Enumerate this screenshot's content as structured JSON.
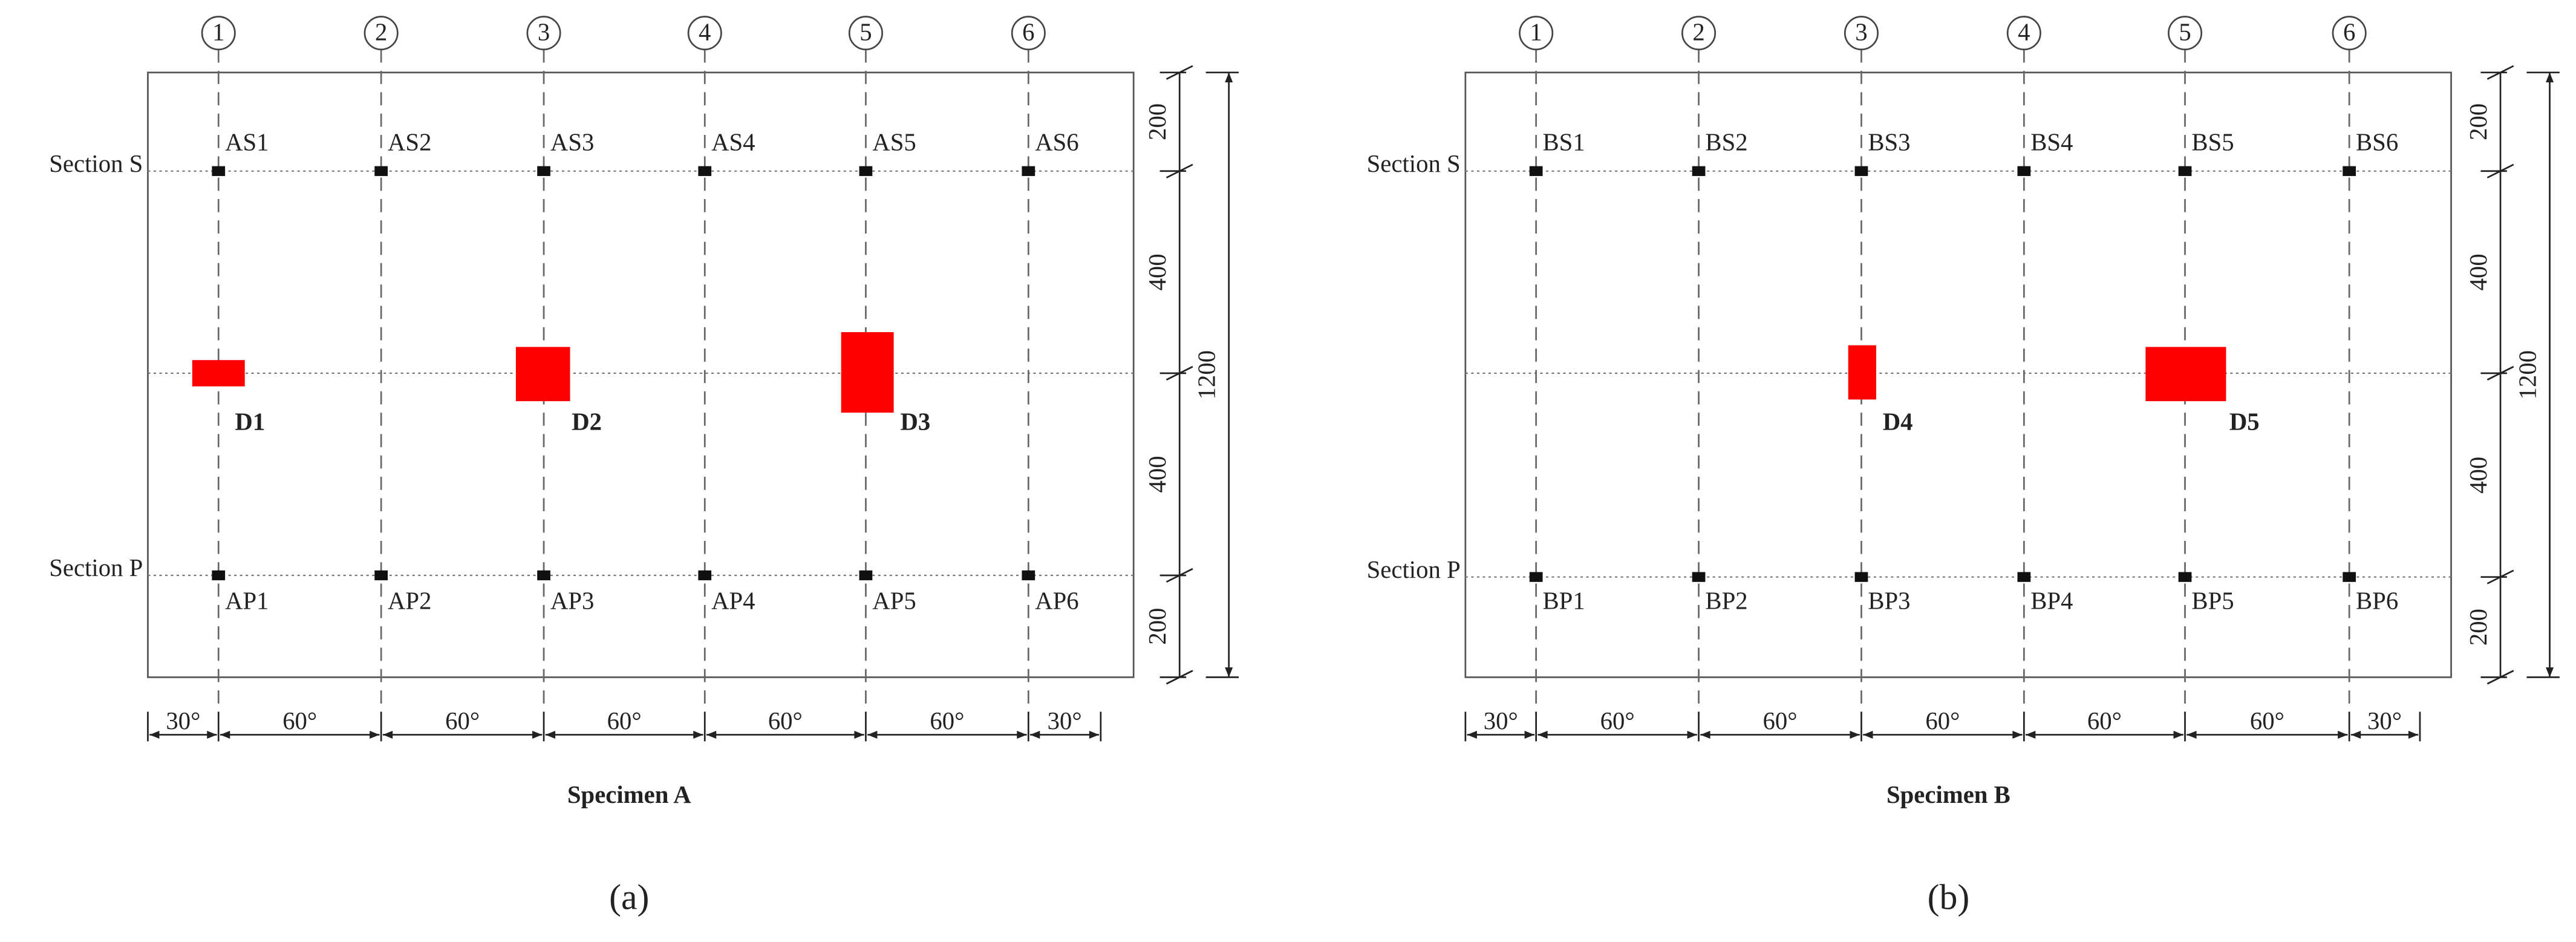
{
  "panels": [
    {
      "axes": [
        "1",
        "2",
        "3",
        "4",
        "5",
        "6"
      ],
      "section_s": "Section S",
      "section_p": "Section P",
      "sensors_top": [
        "AS1",
        "AS2",
        "AS3",
        "AS4",
        "AS5",
        "AS6"
      ],
      "sensors_bottom": [
        "AP1",
        "AP2",
        "AP3",
        "AP4",
        "AP5",
        "AP6"
      ],
      "defects": [
        "D1",
        "D2",
        "D3"
      ],
      "dims_right": [
        "200",
        "400",
        "400",
        "200"
      ],
      "dim_total": "1200",
      "dims_bottom": [
        "30°",
        "60°",
        "60°",
        "60°",
        "60°",
        "60°",
        "30°"
      ],
      "title": "Specimen A",
      "caption": "(a)"
    },
    {
      "axes": [
        "1",
        "2",
        "3",
        "4",
        "5",
        "6"
      ],
      "section_s": "Section S",
      "section_p": "Section P",
      "sensors_top": [
        "BS1",
        "BS2",
        "BS3",
        "BS4",
        "BS5",
        "BS6"
      ],
      "sensors_bottom": [
        "BP1",
        "BP2",
        "BP3",
        "BP4",
        "BP5",
        "BP6"
      ],
      "defects": [
        "D4",
        "D5"
      ],
      "dims_right": [
        "200",
        "400",
        "400",
        "200"
      ],
      "dim_total": "1200",
      "dims_bottom": [
        "30°",
        "60°",
        "60°",
        "60°",
        "60°",
        "60°",
        "30°"
      ],
      "title": "Specimen B",
      "caption": "(b)"
    }
  ]
}
